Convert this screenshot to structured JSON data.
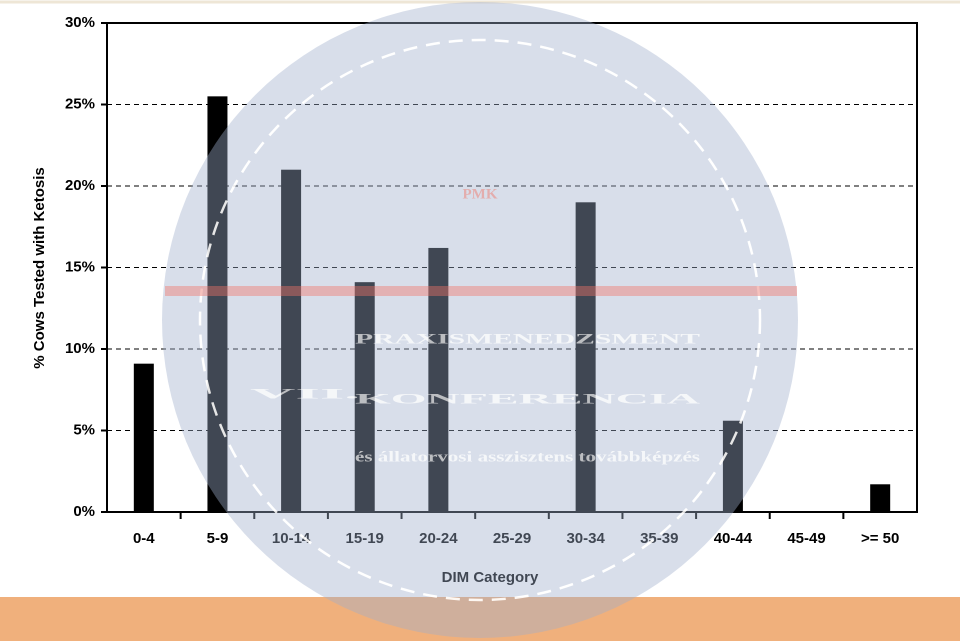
{
  "chart_data": {
    "type": "bar",
    "x_label": "DIM Category",
    "y_label": "% Cows Tested with Ketosis",
    "categories": [
      "0-4",
      "5-9",
      "10-14",
      "15-19",
      "20-24",
      "25-29",
      "30-34",
      "35-39",
      "40-44",
      "45-49",
      ">= 50"
    ],
    "values": [
      9.1,
      25.5,
      21.0,
      14.1,
      16.2,
      0,
      19.0,
      0,
      5.6,
      0,
      1.7
    ],
    "color": "#000000",
    "ylim": [
      0,
      30
    ],
    "yticks": [
      {
        "value": 0,
        "label": "0%"
      },
      {
        "value": 5,
        "label": "5%"
      },
      {
        "value": 10,
        "label": "10%"
      },
      {
        "value": 15,
        "label": "15%"
      },
      {
        "value": 20,
        "label": "20%"
      },
      {
        "value": 25,
        "label": "25%"
      },
      {
        "value": 30,
        "label": "30%"
      }
    ],
    "grid": true
  },
  "watermark": {
    "logo": "PMK",
    "edition": "VII.",
    "line1": "PRAXISMENEDZSMENT",
    "line2": "KONFERENCIA",
    "line3": "és állatorvosi asszisztens továbbképzés"
  }
}
